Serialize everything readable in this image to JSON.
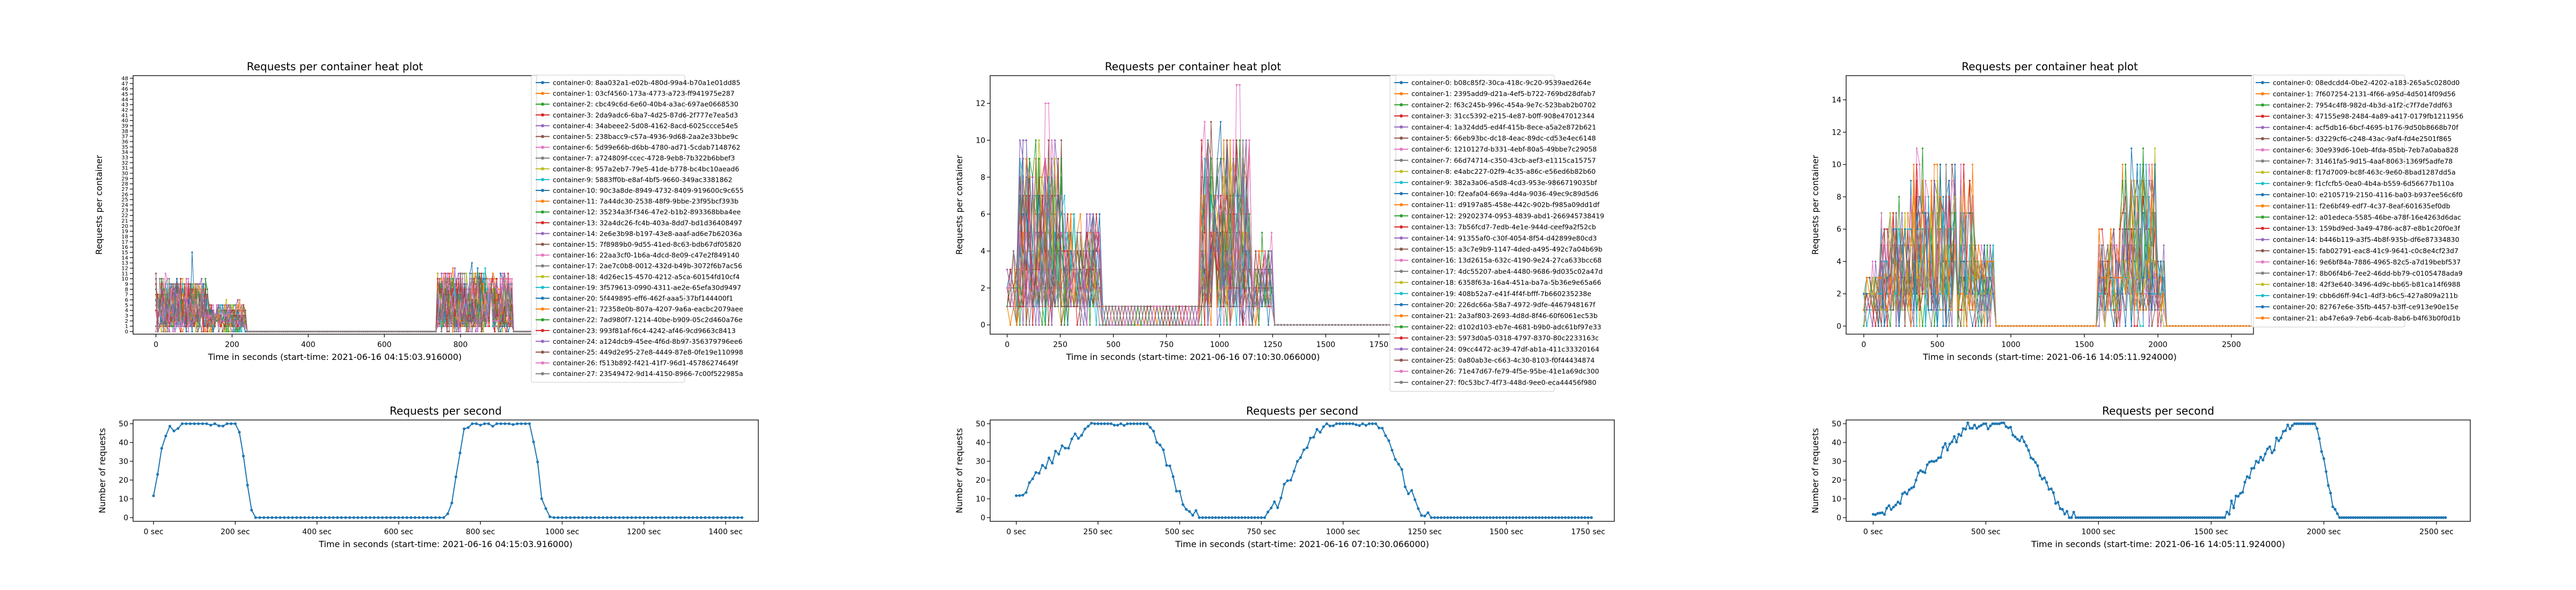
{
  "chart_data": [
    {
      "type": "line",
      "title": "Requests per container heat plot",
      "xlabel": "Time in seconds (start-time: 2021-06-16 04:15:03.916000)",
      "ylabel": "Requests per container",
      "xlim": [
        -60,
        1000
      ],
      "ylim": [
        -0.5,
        48.5
      ],
      "xticks": [
        0,
        200,
        400,
        600,
        800
      ],
      "yticks": [
        0,
        1,
        2,
        3,
        4,
        5,
        6,
        7,
        8,
        9,
        10,
        11,
        12,
        13,
        14,
        15,
        16,
        17,
        18,
        19,
        20,
        21,
        22,
        23,
        24,
        25,
        26,
        27,
        28,
        29,
        30,
        31,
        32,
        33,
        34,
        35,
        36,
        37,
        38,
        39,
        40,
        41,
        42,
        43,
        44,
        45,
        46,
        47,
        48
      ],
      "grid": false,
      "legend": "right",
      "legend_entries": [
        "container-0: 8aa032a1-e02b-480d-99a4-b70a1e01dd85",
        "container-1: 03cf4560-173a-4773-a723-ff941975e287",
        "container-2: cbc49c6d-6e60-40b4-a3ac-697ae0668530",
        "container-3: 2da9adc6-6ba7-4d25-87d6-2f777e7ea5d3",
        "container-4: 34abeee2-5d08-4162-8acd-6025ccce54e5",
        "container-5: 238bacc9-c57a-4936-9d68-2aa2e33bbe9c",
        "container-6: 5d99e66b-d6bb-4780-ad71-5cdab7148762",
        "container-7: a724809f-ccec-4728-9eb8-7b322b6bbef3",
        "container-8: 957a2eb7-79e5-41de-b778-bc4bc10aead6",
        "container-9: 5883ff0b-e8af-4bf5-9660-349ac3381862",
        "container-10: 90c3a8de-8949-4732-8409-919600c9c655",
        "container-11: 7a44dc30-2538-48f9-9bbe-23f95bcf393b",
        "container-12: 35234a3f-f346-47e2-b1b2-893368bba4ee",
        "container-13: 32a4dc26-fc4b-403a-8dd7-bd1d36408497",
        "container-14: 2e6e3b98-b197-43e8-aaaf-ad6e7b62036a",
        "container-15: 7f8989b0-9d55-41ed-8c63-bdb67df05820",
        "container-16: 22aa3cf0-1b6a-4dcd-8e09-c47e2f849140",
        "container-17: 2ae7c0b8-0012-432d-b49b-3072f6b7ac56",
        "container-18: 4d26ec15-4570-4212-a5ca-60154fd10cf4",
        "container-19: 3f579613-0990-4311-ae2e-65efa30d9497",
        "container-20: 5f449895-eff6-462f-aaa5-37bf144400f1",
        "container-21: 72358e0b-807a-4207-9a6a-eacbc2079aee",
        "container-22: 7ad980f7-1214-40be-b909-05c2d460a76e",
        "container-23: 993f81af-f6c4-4242-af46-9cd9663c8413",
        "container-24: a124dcb9-45ee-4f6d-8b97-356379796ee6",
        "container-25: 449d2e95-27e8-4449-87e8-0fe19e110998",
        "container-26: f513b892-f421-41f7-96d1-45786274649f",
        "container-27: 23549472-9d14-4150-8966-7c00f522985a"
      ],
      "series_data": {
        "x_step": 5,
        "segments": [
          {
            "x0": 0,
            "x1": 140,
            "base": 0,
            "amp": 9,
            "spike_x": 95,
            "spike_y": 15
          },
          {
            "x0": 140,
            "x1": 240,
            "base": 0,
            "amp": 4
          },
          {
            "x0": 740,
            "x1": 940,
            "base": 0,
            "amp": 10,
            "spike_x": 830,
            "spike_y": 13
          }
        ]
      }
    },
    {
      "type": "line",
      "title": "Requests per second",
      "xlabel": "Time in seconds (start-time: 2021-06-16 04:15:03.916000)",
      "ylabel": "Number of requests",
      "xlim": [
        -50,
        1480
      ],
      "ylim": [
        -2,
        52
      ],
      "xticks": [
        0,
        200,
        400,
        600,
        800,
        1000,
        1200,
        1400
      ],
      "xtick_labels": [
        "0 sec",
        "200 sec",
        "400 sec",
        "600 sec",
        "800 sec",
        "1000 sec",
        "1200 sec",
        "1400 sec"
      ],
      "yticks": [
        0,
        10,
        20,
        30,
        40,
        50
      ],
      "grid": false,
      "series_data": {
        "x_start": 0,
        "x_end": 1440,
        "x_step": 10,
        "profile": [
          {
            "x": 0,
            "y": 12
          },
          {
            "x": 10,
            "y": 25
          },
          {
            "x": 20,
            "y": 35
          },
          {
            "x": 35,
            "y": 45
          },
          {
            "x": 55,
            "y": 49
          },
          {
            "x": 70,
            "y": 50
          },
          {
            "x": 205,
            "y": 50
          },
          {
            "x": 218,
            "y": 35
          },
          {
            "x": 232,
            "y": 12
          },
          {
            "x": 245,
            "y": 2
          },
          {
            "x": 260,
            "y": 0
          },
          {
            "x": 715,
            "y": 0
          },
          {
            "x": 730,
            "y": 10
          },
          {
            "x": 745,
            "y": 30
          },
          {
            "x": 760,
            "y": 45
          },
          {
            "x": 775,
            "y": 50
          },
          {
            "x": 920,
            "y": 50
          },
          {
            "x": 935,
            "y": 35
          },
          {
            "x": 950,
            "y": 12
          },
          {
            "x": 965,
            "y": 2
          },
          {
            "x": 980,
            "y": 0
          },
          {
            "x": 1440,
            "y": 0
          }
        ]
      }
    },
    {
      "type": "line",
      "title": "Requests per container heat plot",
      "xlabel": "Time in seconds (start-time: 2021-06-16 07:10:30.066000)",
      "ylabel": "Requests per container",
      "xlim": [
        -80,
        1830
      ],
      "ylim": [
        -0.5,
        13.5
      ],
      "xticks": [
        0,
        250,
        500,
        750,
        1000,
        1250,
        1500,
        1750
      ],
      "yticks": [
        0,
        2,
        4,
        6,
        8,
        10,
        12
      ],
      "grid": false,
      "legend": "top-right",
      "legend_entries": [
        "container-0: b08c85f2-30ca-418c-9c20-9539aed264e",
        "container-1: 2395add9-d21a-4ef5-b722-769bd28dfab7",
        "container-2: f63c245b-996c-454a-9e7c-523bab2b0702",
        "container-3: 31cc5392-e215-4e87-b0ff-908e47012344",
        "container-4: 1a324dd5-ed4f-415b-8ece-a5a2e872b621",
        "container-5: 66eb93bc-dc18-4eac-89dc-cd53e4ec6148",
        "container-6: 1210127d-b331-4ebf-80a5-49bbe7c29058",
        "container-7: 66d74714-c350-43cb-aef3-e1115ca15757",
        "container-8: e4abc227-02f9-4c35-a86c-e56ed6b82b60",
        "container-9: 382a3a06-a5d8-4cd3-953e-9866719035bf",
        "container-10: f2eafa04-669a-4d4a-9036-49ec9c89d5d6",
        "container-11: d9197a85-458e-442c-902b-f985a09dd1df",
        "container-12: 29202374-0953-4839-abd1-266945738419",
        "container-13: 7b56fcd7-7edb-4e1e-944d-ceef9a2f52cb",
        "container-14: 91355af0-c30f-4054-8f54-d42899e80cd3",
        "container-15: a3c7e9b9-1147-4ded-a495-492c7a04b69b",
        "container-16: 13d2615a-632c-4190-9e24-27ca633bcc68",
        "container-17: 4dc55207-abe4-4480-9686-9d035c02a47d",
        "container-18: 6358f63a-16a4-451a-ba7a-5b36e9e65a66",
        "container-19: 408b52a7-e41f-4f4f-bfff-7b660235238e",
        "container-20: 226dc66a-58a7-4972-9dfe-4467948167f",
        "container-21: 2a3af803-2693-4d8d-8f46-60f6061ec53b",
        "container-22: d102d103-eb7e-4681-b9b0-adc61bf97e33",
        "container-23: 5973d0a5-0318-4797-8370-80c2233163c",
        "container-24: 09cc4472-ac39-47df-ab1a-411c33320164",
        "container-25: 0a80ab3e-c663-4c30-8103-f0f44434874",
        "container-26: 71e47d67-fe79-4f5e-95be-41e1a69dc300",
        "container-27: f0c53bc7-4f73-448d-9ee0-eca44456f980"
      ],
      "series_data": {
        "x_step": 15,
        "segments": [
          {
            "x0": 0,
            "x1": 60,
            "base": 0,
            "amp": 2
          },
          {
            "x0": 60,
            "x1": 270,
            "base": 0,
            "amp": 9,
            "spike_x": 185,
            "spike_y": 12
          },
          {
            "x0": 270,
            "x1": 440,
            "base": 0,
            "amp": 5
          },
          {
            "x0": 440,
            "x1": 910,
            "base": 0,
            "amp": 1,
            "low_band": 1
          },
          {
            "x0": 910,
            "x1": 1150,
            "base": 0,
            "amp": 9,
            "spike_x": 1085,
            "spike_y": 13
          },
          {
            "x0": 1150,
            "x1": 1260,
            "base": 0,
            "amp": 3
          }
        ]
      }
    },
    {
      "type": "line",
      "title": "Requests per second",
      "xlabel": "Time in seconds (start-time: 2021-06-16 07:10:30.066000)",
      "ylabel": "Number of requests",
      "xlim": [
        -80,
        1830
      ],
      "ylim": [
        -2,
        52
      ],
      "xticks": [
        0,
        250,
        500,
        750,
        1000,
        1250,
        1500,
        1750
      ],
      "xtick_labels": [
        "0 sec",
        "250 sec",
        "500 sec",
        "750 sec",
        "1000 sec",
        "1250 sec",
        "1500 sec",
        "1750 sec"
      ],
      "yticks": [
        0,
        10,
        20,
        30,
        40,
        50
      ],
      "grid": false,
      "series_data": {
        "x_start": 0,
        "x_end": 1760,
        "x_step": 10,
        "profile": [
          {
            "x": 0,
            "y": 12
          },
          {
            "x": 25,
            "y": 15
          },
          {
            "x": 60,
            "y": 22
          },
          {
            "x": 100,
            "y": 30
          },
          {
            "x": 150,
            "y": 38
          },
          {
            "x": 200,
            "y": 45
          },
          {
            "x": 240,
            "y": 50
          },
          {
            "x": 400,
            "y": 50
          },
          {
            "x": 420,
            "y": 44
          },
          {
            "x": 445,
            "y": 38
          },
          {
            "x": 470,
            "y": 25
          },
          {
            "x": 500,
            "y": 12
          },
          {
            "x": 530,
            "y": 3
          },
          {
            "x": 560,
            "y": 0
          },
          {
            "x": 760,
            "y": 0
          },
          {
            "x": 800,
            "y": 8
          },
          {
            "x": 840,
            "y": 22
          },
          {
            "x": 880,
            "y": 35
          },
          {
            "x": 920,
            "y": 45
          },
          {
            "x": 950,
            "y": 50
          },
          {
            "x": 1100,
            "y": 50
          },
          {
            "x": 1130,
            "y": 42
          },
          {
            "x": 1165,
            "y": 30
          },
          {
            "x": 1200,
            "y": 15
          },
          {
            "x": 1240,
            "y": 3
          },
          {
            "x": 1270,
            "y": 0
          },
          {
            "x": 1760,
            "y": 0
          }
        ]
      }
    },
    {
      "type": "line",
      "title": "Requests per container heat plot",
      "xlabel": "Time in seconds (start-time: 2021-06-16 14:05:11.924000)",
      "ylabel": "Requests per container",
      "xlim": [
        -120,
        2650
      ],
      "ylim": [
        -0.5,
        15.5
      ],
      "xticks": [
        0,
        500,
        1000,
        1500,
        2000,
        2500
      ],
      "yticks": [
        0,
        2,
        4,
        6,
        8,
        10,
        12,
        14
      ],
      "grid": false,
      "legend": "top-right",
      "legend_entries": [
        "container-0: 08edcdd4-0be2-4202-a183-265a5c0280d0",
        "container-1: 7f607254-2131-4f66-a95d-4d5014f09d56",
        "container-2: 7954c4f8-982d-4b3d-a1f2-c7f7de7ddf63",
        "container-3: 47155e98-2484-4a89-a417-0179fb1211956",
        "container-4: acf5db16-6bcf-4695-b176-9d50b8668b70f",
        "container-5: d3229cf6-c248-43ac-9af4-fd4e2501f865",
        "container-6: 30e939d6-10eb-4fda-85bb-7eb7a0aba828",
        "container-7: 31461fa5-9d15-4aaf-8063-1369f5adfe78",
        "container-8: f17d7009-bc8f-463c-9e60-8bad1287dd5a",
        "container-9: f1cfcfb5-0ea0-4b4a-b559-6d56677b110a",
        "container-10: e2105719-2150-4116-ba03-b937ee56c6f0",
        "container-11: f2e6bf49-edf7-4c37-8eaf-601635ef0db",
        "container-12: a01edeca-5585-46be-a78f-16e4263d6dac",
        "container-13: 159bd9ed-3a49-4786-ac87-e8b1c20f0e3f",
        "container-14: b446b119-a3f5-4b8f-935b-df6e87334830",
        "container-15: fab02791-eac8-41c9-9641-c0c8e4cf23d7",
        "container-16: 9e6bf84a-7886-4965-82c5-a7d19bebf537",
        "container-17: 8b06f4b6-7ee2-46dd-bb79-c0105478ada9",
        "container-18: 42f3e640-3496-4d9c-bb65-b81ca14f6988",
        "container-19: cbb6d6ff-94c1-4df3-b6c5-427a809a211b",
        "container-20: 82767e6e-35fb-4457-b3ff-ce913e90e15e",
        "container-21: ab47e6a9-7eb6-4cab-8ab6-b4f63b0f0d1b"
      ],
      "series_data": {
        "x_step": 20,
        "segments": [
          {
            "x0": 0,
            "x1": 120,
            "base": 0,
            "amp": 2
          },
          {
            "x0": 120,
            "x1": 320,
            "base": 0,
            "amp": 6
          },
          {
            "x0": 320,
            "x1": 760,
            "base": 0,
            "amp": 9,
            "spike_x": 520,
            "spike_y": 10
          },
          {
            "x0": 760,
            "x1": 900,
            "base": 0,
            "amp": 4
          },
          {
            "x0": 1600,
            "x1": 1760,
            "base": 0,
            "amp": 5
          },
          {
            "x0": 1760,
            "x1": 2000,
            "base": 0,
            "amp": 9,
            "spike_x": 1900,
            "spike_y": 11
          },
          {
            "x0": 2000,
            "x1": 2060,
            "base": 0,
            "amp": 3
          }
        ]
      }
    },
    {
      "type": "line",
      "title": "Requests per second",
      "xlabel": "Time in seconds (start-time: 2021-06-16 14:05:11.924000)",
      "ylabel": "Number of requests",
      "xlim": [
        -120,
        2650
      ],
      "ylim": [
        -2,
        52
      ],
      "xticks": [
        0,
        500,
        1000,
        1500,
        2000,
        2500
      ],
      "xtick_labels": [
        "0 sec",
        "500 sec",
        "1000 sec",
        "1500 sec",
        "2000 sec",
        "2500 sec"
      ],
      "yticks": [
        0,
        10,
        20,
        30,
        40,
        50
      ],
      "grid": false,
      "series_data": {
        "x_start": 0,
        "x_end": 2540,
        "x_step": 10,
        "profile": [
          {
            "x": 0,
            "y": 2
          },
          {
            "x": 60,
            "y": 5
          },
          {
            "x": 120,
            "y": 10
          },
          {
            "x": 200,
            "y": 22
          },
          {
            "x": 280,
            "y": 32
          },
          {
            "x": 360,
            "y": 42
          },
          {
            "x": 420,
            "y": 48
          },
          {
            "x": 560,
            "y": 50
          },
          {
            "x": 620,
            "y": 45
          },
          {
            "x": 680,
            "y": 38
          },
          {
            "x": 740,
            "y": 25
          },
          {
            "x": 800,
            "y": 12
          },
          {
            "x": 860,
            "y": 3
          },
          {
            "x": 900,
            "y": 0
          },
          {
            "x": 1560,
            "y": 0
          },
          {
            "x": 1620,
            "y": 12
          },
          {
            "x": 1700,
            "y": 28
          },
          {
            "x": 1760,
            "y": 35
          },
          {
            "x": 1820,
            "y": 45
          },
          {
            "x": 1870,
            "y": 50
          },
          {
            "x": 1960,
            "y": 50
          },
          {
            "x": 2000,
            "y": 30
          },
          {
            "x": 2040,
            "y": 8
          },
          {
            "x": 2070,
            "y": 0
          },
          {
            "x": 2540,
            "y": 0
          }
        ]
      }
    }
  ]
}
